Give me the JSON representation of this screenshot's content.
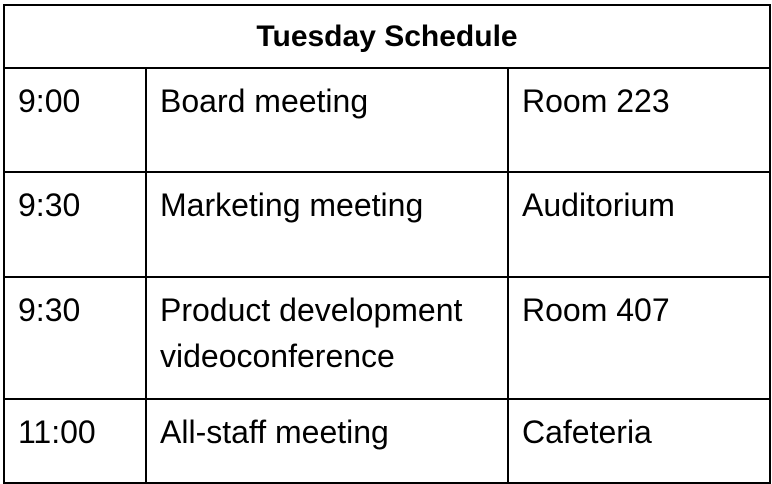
{
  "schedule": {
    "title": "Tuesday Schedule",
    "rows": [
      {
        "time": "9:00",
        "event": "Board meeting",
        "location": "Room 223"
      },
      {
        "time": "9:30",
        "event": "Marketing meeting",
        "location": "Auditorium"
      },
      {
        "time": "9:30",
        "event": "Product development videoconference",
        "location": "Room 407"
      },
      {
        "time": "11:00",
        "event": "All-staff meeting",
        "location": "Cafeteria"
      }
    ]
  }
}
